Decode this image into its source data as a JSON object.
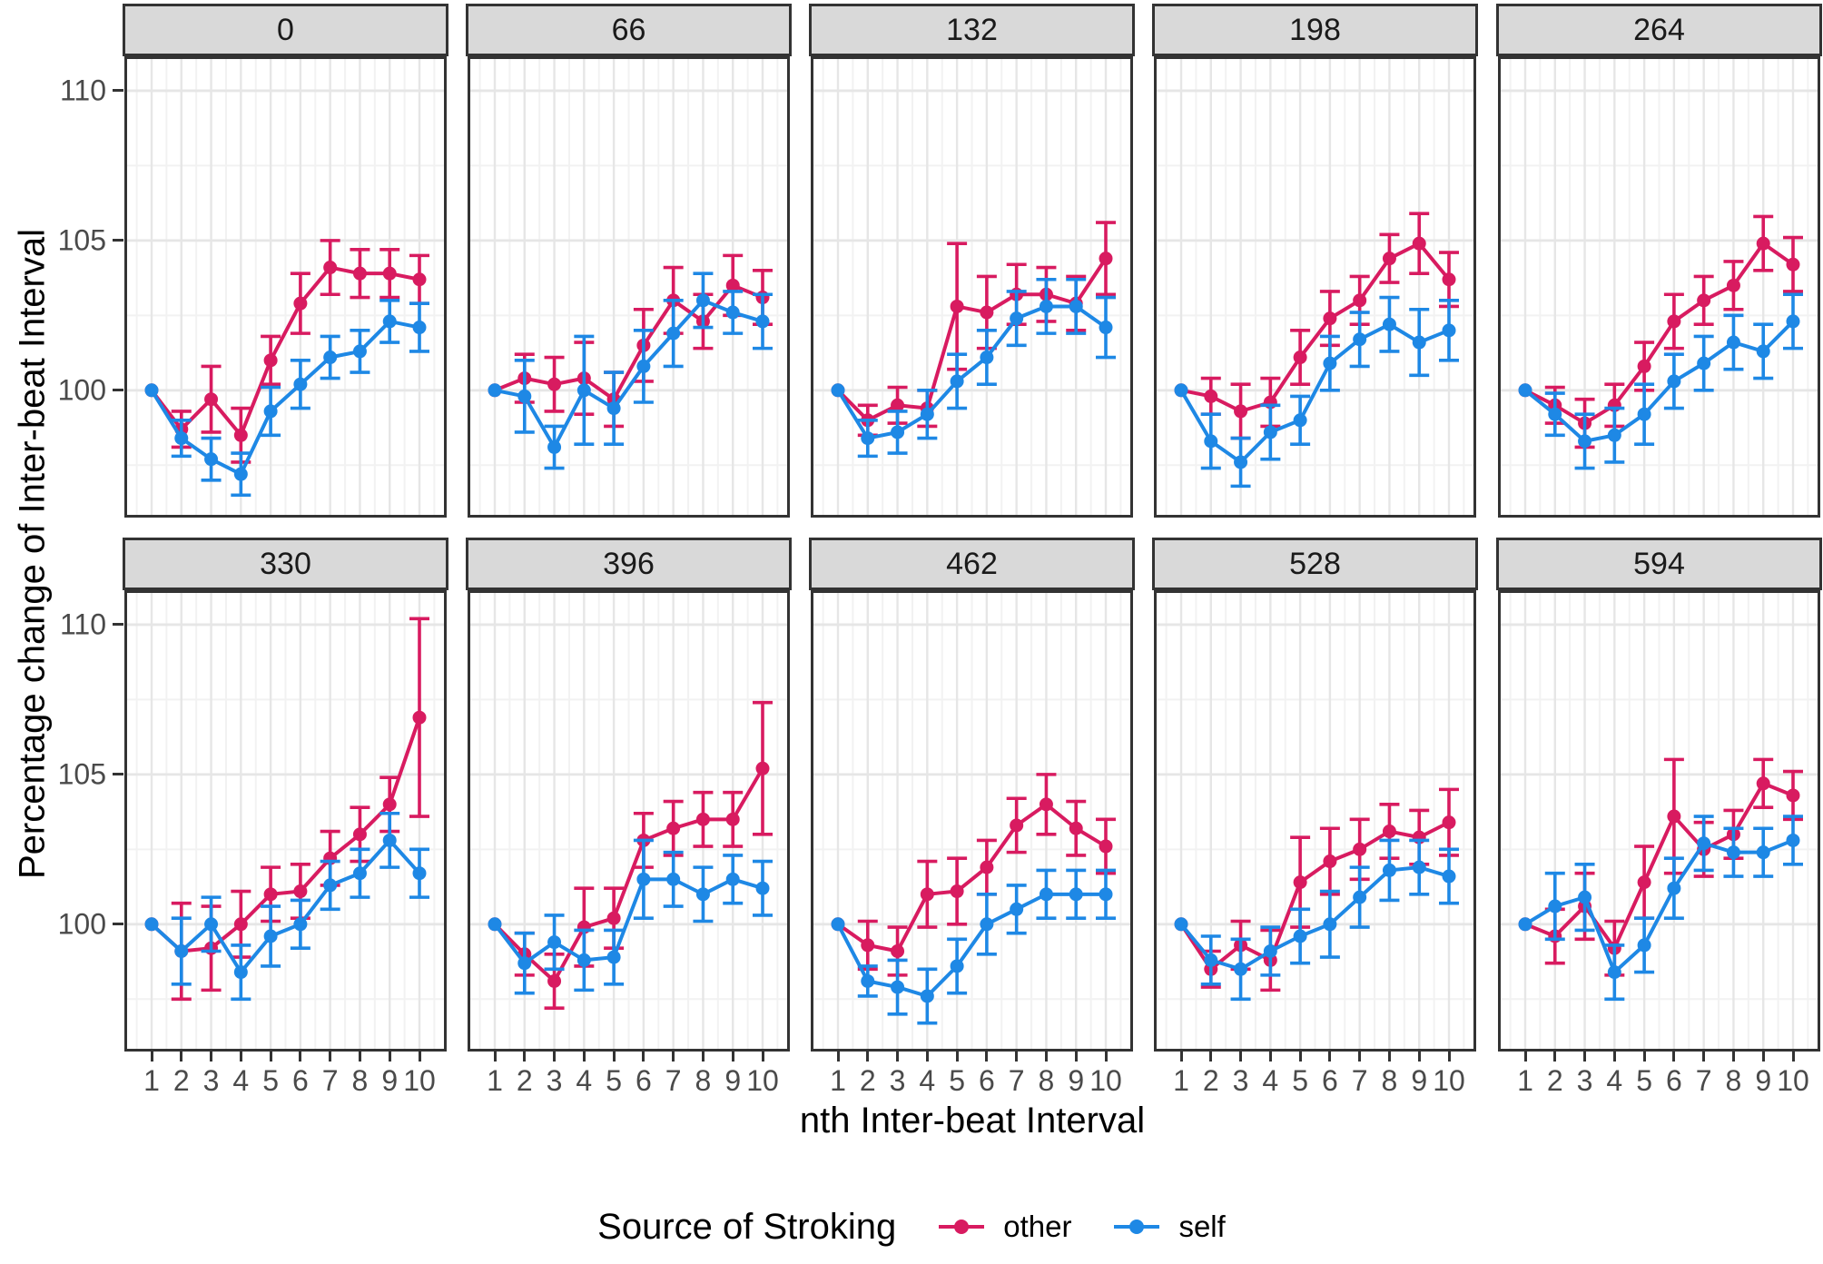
{
  "y_axis": {
    "title": "Percentage change of Inter-beat Interval",
    "tick_labels": [
      "110",
      "105",
      "100"
    ],
    "tick_values": [
      110,
      105,
      100
    ]
  },
  "x_axis": {
    "title": "nth Inter-beat Interval",
    "tick_labels": [
      "1",
      "2",
      "3",
      "4",
      "5",
      "6",
      "7",
      "8",
      "9",
      "10"
    ]
  },
  "legend": {
    "title": "Source of Stroking",
    "items": [
      {
        "label": "other",
        "color": "#D81B60"
      },
      {
        "label": "self",
        "color": "#1E88E5"
      }
    ]
  },
  "chart_data": {
    "type": "line",
    "x": [
      1,
      2,
      3,
      4,
      5,
      6,
      7,
      8,
      9,
      10
    ],
    "xlabel": "nth Inter-beat Interval",
    "ylabel": "Percentage change of Inter-beat Interval",
    "ylim": [
      95.75,
      111.15
    ],
    "yticks": [
      100,
      105,
      110
    ],
    "y_minor_ticks": [
      97.5,
      102.5,
      107.5
    ],
    "x_minor_ticks": [
      0.5,
      1.5,
      2.5,
      3.5,
      4.5,
      5.5,
      6.5,
      7.5,
      8.5,
      9.5,
      10.5
    ],
    "grid": "major+minor",
    "error_bars": true,
    "legend_position": "bottom",
    "facet_labels": [
      "0",
      "66",
      "132",
      "198",
      "264",
      "330",
      "396",
      "462",
      "528",
      "594"
    ],
    "series_colors": {
      "other": "#D81B60",
      "self": "#1E88E5"
    },
    "panels": [
      {
        "label": "0",
        "other": {
          "values": [
            100,
            98.7,
            99.7,
            98.5,
            101.0,
            102.9,
            104.1,
            103.9,
            103.9,
            103.7
          ],
          "errors": [
            0,
            0.6,
            1.1,
            0.9,
            0.8,
            1.0,
            0.9,
            0.8,
            0.8,
            0.8
          ]
        },
        "self": {
          "values": [
            100,
            98.4,
            97.7,
            97.2,
            99.3,
            100.2,
            101.1,
            101.3,
            102.3,
            102.1
          ],
          "errors": [
            0,
            0.6,
            0.7,
            0.7,
            0.8,
            0.8,
            0.7,
            0.7,
            0.7,
            0.8
          ]
        }
      },
      {
        "label": "66",
        "other": {
          "values": [
            100,
            100.4,
            100.2,
            100.4,
            99.7,
            101.5,
            103.0,
            102.3,
            103.5,
            103.1
          ],
          "errors": [
            0,
            0.8,
            0.9,
            1.2,
            0.9,
            1.2,
            1.1,
            0.9,
            1.0,
            0.9
          ]
        },
        "self": {
          "values": [
            100,
            99.8,
            98.1,
            100.0,
            99.4,
            100.8,
            101.9,
            103.0,
            102.6,
            102.3
          ],
          "errors": [
            0,
            1.2,
            0.7,
            1.8,
            1.2,
            1.2,
            1.1,
            0.9,
            0.7,
            0.9
          ]
        }
      },
      {
        "label": "132",
        "other": {
          "values": [
            100,
            99.0,
            99.5,
            99.4,
            102.8,
            102.6,
            103.2,
            103.2,
            102.9,
            104.4
          ],
          "errors": [
            0,
            0.5,
            0.6,
            0.6,
            2.1,
            1.2,
            1.0,
            0.9,
            0.9,
            1.2
          ]
        },
        "self": {
          "values": [
            100,
            98.4,
            98.6,
            99.2,
            100.3,
            101.1,
            102.4,
            102.8,
            102.8,
            102.1
          ],
          "errors": [
            0,
            0.6,
            0.7,
            0.8,
            0.9,
            0.9,
            0.9,
            0.9,
            0.9,
            1.0
          ]
        }
      },
      {
        "label": "198",
        "other": {
          "values": [
            100,
            99.8,
            99.3,
            99.6,
            101.1,
            102.4,
            103.0,
            104.4,
            104.9,
            103.7
          ],
          "errors": [
            0,
            0.6,
            0.9,
            0.8,
            0.9,
            0.9,
            0.8,
            0.8,
            1.0,
            0.9
          ]
        },
        "self": {
          "values": [
            100,
            98.3,
            97.6,
            98.6,
            99.0,
            100.9,
            101.7,
            102.2,
            101.6,
            102.0
          ],
          "errors": [
            0,
            0.9,
            0.8,
            0.9,
            0.8,
            0.9,
            0.9,
            0.9,
            1.1,
            1.0
          ]
        }
      },
      {
        "label": "264",
        "other": {
          "values": [
            100,
            99.5,
            98.9,
            99.5,
            100.8,
            102.3,
            103.0,
            103.5,
            104.9,
            104.2
          ],
          "errors": [
            0,
            0.6,
            0.8,
            0.7,
            0.8,
            0.9,
            0.8,
            0.8,
            0.9,
            0.9
          ]
        },
        "self": {
          "values": [
            100,
            99.2,
            98.3,
            98.5,
            99.2,
            100.3,
            100.9,
            101.6,
            101.3,
            102.3
          ],
          "errors": [
            0,
            0.7,
            0.9,
            0.9,
            1.0,
            0.9,
            0.9,
            0.9,
            0.9,
            0.9
          ]
        }
      },
      {
        "label": "330",
        "other": {
          "values": [
            100,
            99.1,
            99.2,
            100.0,
            101.0,
            101.1,
            102.2,
            103.0,
            104.0,
            106.9
          ],
          "errors": [
            0,
            1.6,
            1.4,
            1.1,
            0.9,
            0.9,
            0.9,
            0.9,
            0.9,
            3.3
          ]
        },
        "self": {
          "values": [
            100,
            99.1,
            100.0,
            98.4,
            99.6,
            100.0,
            101.3,
            101.7,
            102.8,
            101.7
          ],
          "errors": [
            0,
            1.1,
            0.9,
            0.9,
            1.0,
            0.8,
            0.8,
            0.8,
            0.9,
            0.8
          ]
        }
      },
      {
        "label": "396",
        "other": {
          "values": [
            100,
            99.0,
            98.1,
            99.9,
            100.2,
            102.8,
            103.2,
            103.5,
            103.5,
            105.2
          ],
          "errors": [
            0,
            0.7,
            0.9,
            1.3,
            1.0,
            0.9,
            0.9,
            0.9,
            0.9,
            2.2
          ]
        },
        "self": {
          "values": [
            100,
            98.7,
            99.4,
            98.8,
            98.9,
            101.5,
            101.5,
            101.0,
            101.5,
            101.2
          ],
          "errors": [
            0,
            1.0,
            0.9,
            1.0,
            0.9,
            1.3,
            0.9,
            0.9,
            0.8,
            0.9
          ]
        }
      },
      {
        "label": "462",
        "other": {
          "values": [
            100,
            99.3,
            99.1,
            101.0,
            101.1,
            101.9,
            103.3,
            104.0,
            103.2,
            102.6
          ],
          "errors": [
            0,
            0.8,
            0.8,
            1.1,
            1.1,
            0.9,
            0.9,
            1.0,
            0.9,
            0.9
          ]
        },
        "self": {
          "values": [
            100,
            98.1,
            97.9,
            97.6,
            98.6,
            100.0,
            100.5,
            101.0,
            101.0,
            101.0
          ],
          "errors": [
            0,
            0.5,
            0.9,
            0.9,
            0.9,
            1.0,
            0.8,
            0.8,
            0.8,
            0.8
          ]
        }
      },
      {
        "label": "528",
        "other": {
          "values": [
            100,
            98.5,
            99.3,
            98.8,
            101.4,
            102.1,
            102.5,
            103.1,
            102.9,
            103.4
          ],
          "errors": [
            0,
            0.6,
            0.8,
            1.0,
            1.5,
            1.1,
            1.0,
            0.9,
            0.9,
            1.1
          ]
        },
        "self": {
          "values": [
            100,
            98.8,
            98.5,
            99.1,
            99.6,
            100.0,
            100.9,
            101.8,
            101.9,
            101.6
          ],
          "errors": [
            0,
            0.8,
            1.0,
            0.8,
            0.9,
            1.1,
            1.0,
            1.0,
            0.9,
            0.9
          ]
        }
      },
      {
        "label": "594",
        "other": {
          "values": [
            100,
            99.6,
            100.6,
            99.2,
            101.4,
            103.6,
            102.5,
            103.0,
            104.7,
            104.3
          ],
          "errors": [
            0,
            0.9,
            1.1,
            0.9,
            1.2,
            1.9,
            0.9,
            0.8,
            0.8,
            0.8
          ]
        },
        "self": {
          "values": [
            100,
            100.6,
            100.9,
            98.4,
            99.3,
            101.2,
            102.7,
            102.4,
            102.4,
            102.8
          ],
          "errors": [
            0,
            1.1,
            1.1,
            0.9,
            0.9,
            1.0,
            0.9,
            0.8,
            0.8,
            0.8
          ]
        }
      }
    ]
  }
}
